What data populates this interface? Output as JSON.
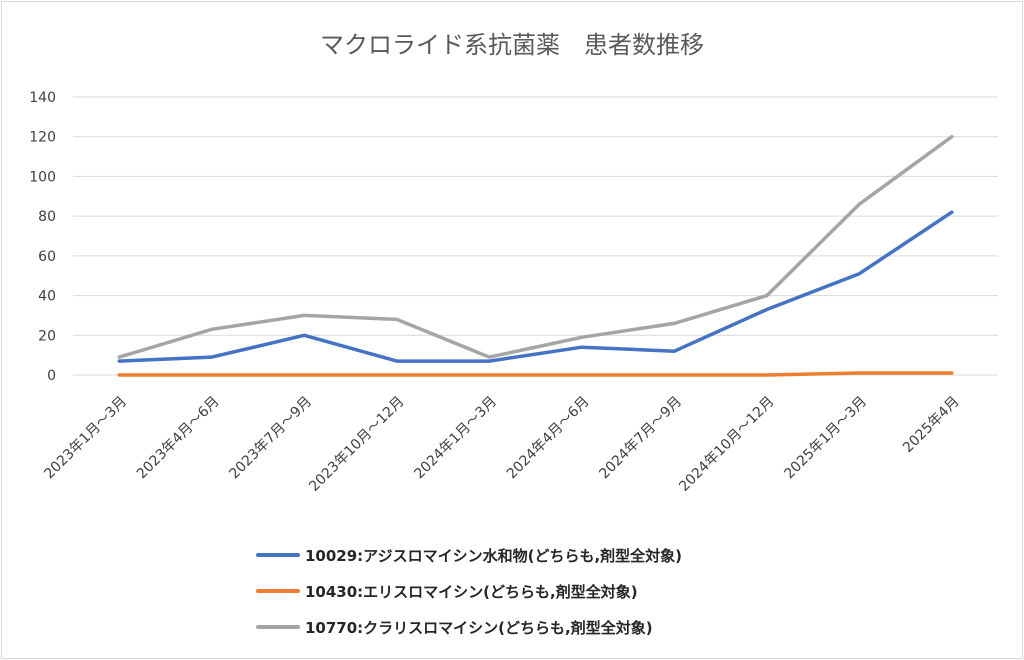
{
  "chart_data": {
    "type": "line",
    "title": "マクロライド系抗菌薬　患者数推移",
    "xlabel": "",
    "ylabel": "",
    "categories": [
      "2023年1月～3月",
      "2023年4月～6月",
      "2023年7月～9月",
      "2023年10月～12月",
      "2024年1月～3月",
      "2024年4月～6月",
      "2024年7月～9月",
      "2024年10月～12月",
      "2025年1月～3月",
      "2025年4月"
    ],
    "yticks": [
      "0",
      "20",
      "40",
      "60",
      "80",
      "100",
      "120",
      "140"
    ],
    "ylim": [
      0,
      140
    ],
    "grid": true,
    "legend_position": "bottom",
    "series": [
      {
        "name": "10029:アジスロマイシン水和物(どちらも,剤型全対象)",
        "color": "#4472c4",
        "values": [
          7,
          9,
          20,
          7,
          7,
          14,
          12,
          33,
          51,
          82
        ]
      },
      {
        "name": "10430:エリスロマイシン(どちらも,剤型全対象)",
        "color": "#ed7d31",
        "values": [
          0,
          0,
          0,
          0,
          0,
          0,
          0,
          0,
          1,
          1
        ]
      },
      {
        "name": "10770:クラリスロマイシン(どちらも,剤型全対象)",
        "color": "#a5a5a5",
        "values": [
          9,
          23,
          30,
          28,
          9,
          19,
          26,
          40,
          86,
          120
        ]
      }
    ]
  }
}
